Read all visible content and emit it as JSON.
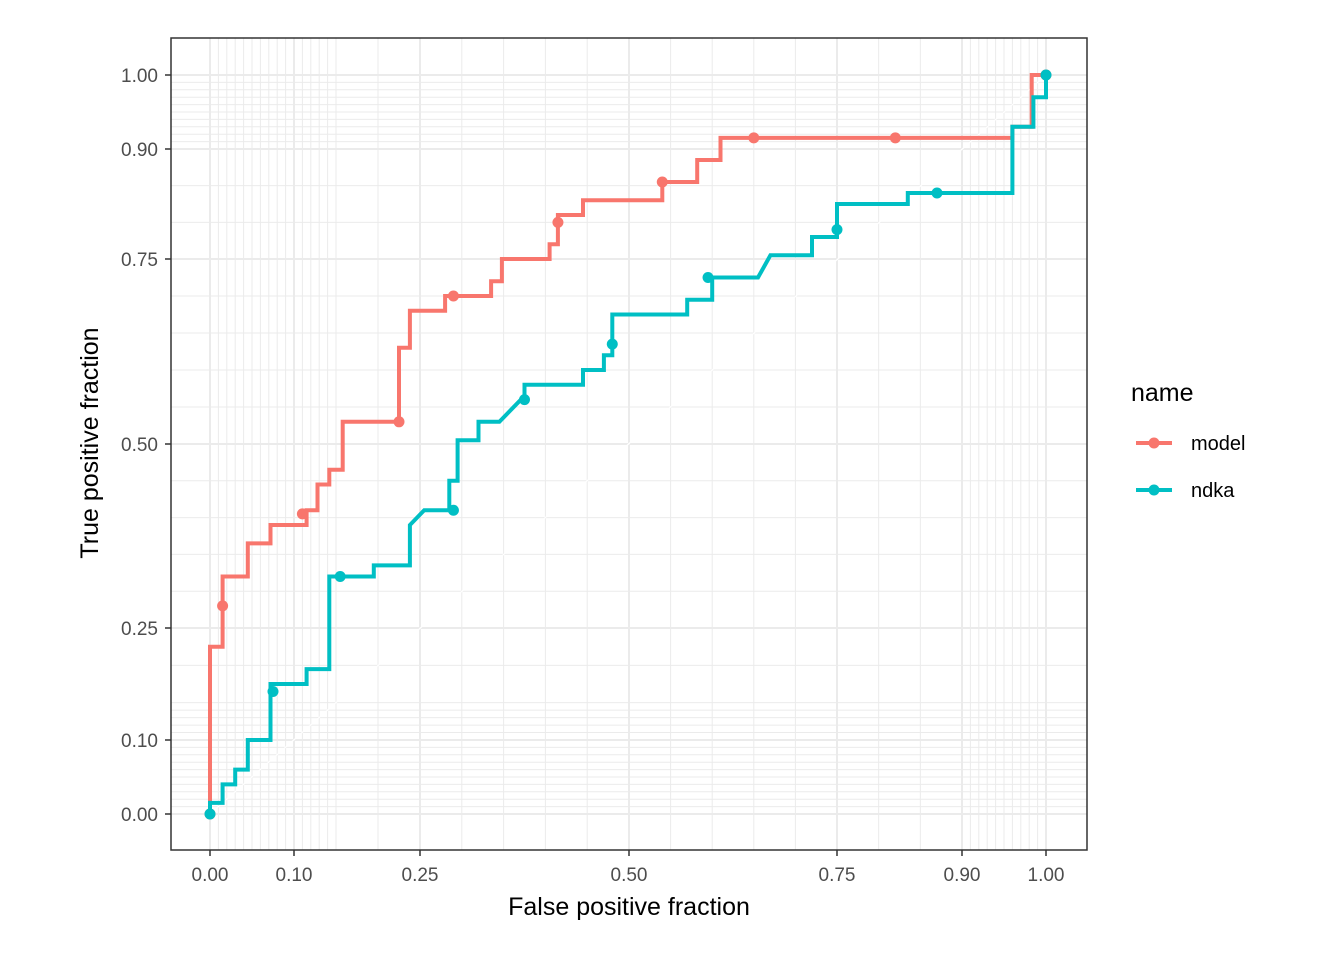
{
  "chart_data": {
    "type": "line",
    "xlabel": "False positive fraction",
    "ylabel": "True positive fraction",
    "xlim": [
      -0.045,
      1.045
    ],
    "ylim": [
      -0.045,
      1.05
    ],
    "scale": "sqrt-like (R plotROC style_roc breaks)",
    "x_ticks": [
      {
        "value": 0.0,
        "label": "0.00"
      },
      {
        "value": 0.1,
        "label": "0.10"
      },
      {
        "value": 0.25,
        "label": "0.25"
      },
      {
        "value": 0.5,
        "label": "0.50"
      },
      {
        "value": 0.75,
        "label": "0.75"
      },
      {
        "value": 0.9,
        "label": "0.90"
      },
      {
        "value": 1.0,
        "label": "1.00"
      }
    ],
    "y_ticks": [
      {
        "value": 0.0,
        "label": "0.00"
      },
      {
        "value": 0.1,
        "label": "0.10"
      },
      {
        "value": 0.25,
        "label": "0.25"
      },
      {
        "value": 0.5,
        "label": "0.50"
      },
      {
        "value": 0.75,
        "label": "0.75"
      },
      {
        "value": 0.9,
        "label": "0.90"
      },
      {
        "value": 1.0,
        "label": "1.00"
      }
    ],
    "minor_grid": [
      0.01,
      0.02,
      0.03,
      0.04,
      0.05,
      0.06,
      0.07,
      0.08,
      0.09,
      0.11,
      0.12,
      0.13,
      0.14,
      0.15,
      0.2,
      0.3,
      0.35,
      0.4,
      0.45,
      0.55,
      0.6,
      0.65,
      0.7,
      0.8,
      0.85,
      0.91,
      0.92,
      0.93,
      0.94,
      0.95,
      0.96,
      0.97,
      0.98,
      0.99
    ],
    "grid": true,
    "legend": {
      "title": "name",
      "position": "right"
    },
    "series": [
      {
        "name": "model",
        "color": "#F8766D",
        "path": [
          [
            0.0,
            0.0
          ],
          [
            0.0,
            0.225
          ],
          [
            0.015,
            0.225
          ],
          [
            0.015,
            0.32
          ],
          [
            0.045,
            0.32
          ],
          [
            0.045,
            0.365
          ],
          [
            0.072,
            0.365
          ],
          [
            0.072,
            0.39
          ],
          [
            0.115,
            0.39
          ],
          [
            0.115,
            0.41
          ],
          [
            0.128,
            0.41
          ],
          [
            0.128,
            0.445
          ],
          [
            0.142,
            0.445
          ],
          [
            0.142,
            0.465
          ],
          [
            0.158,
            0.465
          ],
          [
            0.158,
            0.53
          ],
          [
            0.225,
            0.53
          ],
          [
            0.225,
            0.63
          ],
          [
            0.238,
            0.63
          ],
          [
            0.238,
            0.68
          ],
          [
            0.28,
            0.68
          ],
          [
            0.28,
            0.7
          ],
          [
            0.335,
            0.7
          ],
          [
            0.335,
            0.72
          ],
          [
            0.348,
            0.72
          ],
          [
            0.348,
            0.75
          ],
          [
            0.405,
            0.75
          ],
          [
            0.405,
            0.77
          ],
          [
            0.415,
            0.77
          ],
          [
            0.415,
            0.81
          ],
          [
            0.445,
            0.81
          ],
          [
            0.445,
            0.83
          ],
          [
            0.54,
            0.83
          ],
          [
            0.54,
            0.855
          ],
          [
            0.582,
            0.855
          ],
          [
            0.582,
            0.885
          ],
          [
            0.61,
            0.885
          ],
          [
            0.61,
            0.915
          ],
          [
            0.96,
            0.915
          ],
          [
            0.96,
            0.93
          ],
          [
            0.983,
            0.93
          ],
          [
            0.983,
            1.0
          ],
          [
            1.0,
            1.0
          ]
        ],
        "points": [
          [
            0.0,
            0.0
          ],
          [
            0.015,
            0.28
          ],
          [
            0.11,
            0.405
          ],
          [
            0.225,
            0.53
          ],
          [
            0.29,
            0.7
          ],
          [
            0.415,
            0.8
          ],
          [
            0.54,
            0.855
          ],
          [
            0.65,
            0.915
          ],
          [
            0.82,
            0.915
          ],
          [
            1.0,
            1.0
          ]
        ]
      },
      {
        "name": "ndka",
        "color": "#00BFC4",
        "path": [
          [
            0.0,
            0.0
          ],
          [
            0.0,
            0.015
          ],
          [
            0.015,
            0.015
          ],
          [
            0.015,
            0.04
          ],
          [
            0.03,
            0.04
          ],
          [
            0.03,
            0.06
          ],
          [
            0.045,
            0.06
          ],
          [
            0.045,
            0.1
          ],
          [
            0.072,
            0.1
          ],
          [
            0.072,
            0.175
          ],
          [
            0.115,
            0.175
          ],
          [
            0.115,
            0.195
          ],
          [
            0.142,
            0.195
          ],
          [
            0.142,
            0.32
          ],
          [
            0.195,
            0.32
          ],
          [
            0.195,
            0.335
          ],
          [
            0.238,
            0.335
          ],
          [
            0.238,
            0.39
          ],
          [
            0.255,
            0.41
          ],
          [
            0.285,
            0.41
          ],
          [
            0.285,
            0.45
          ],
          [
            0.295,
            0.45
          ],
          [
            0.295,
            0.505
          ],
          [
            0.32,
            0.505
          ],
          [
            0.32,
            0.53
          ],
          [
            0.345,
            0.53
          ],
          [
            0.375,
            0.565
          ],
          [
            0.375,
            0.58
          ],
          [
            0.445,
            0.58
          ],
          [
            0.445,
            0.6
          ],
          [
            0.47,
            0.6
          ],
          [
            0.47,
            0.62
          ],
          [
            0.48,
            0.62
          ],
          [
            0.48,
            0.675
          ],
          [
            0.57,
            0.675
          ],
          [
            0.57,
            0.695
          ],
          [
            0.6,
            0.695
          ],
          [
            0.6,
            0.725
          ],
          [
            0.655,
            0.725
          ],
          [
            0.67,
            0.755
          ],
          [
            0.72,
            0.755
          ],
          [
            0.72,
            0.78
          ],
          [
            0.75,
            0.78
          ],
          [
            0.75,
            0.825
          ],
          [
            0.835,
            0.825
          ],
          [
            0.835,
            0.84
          ],
          [
            0.92,
            0.84
          ],
          [
            0.96,
            0.84
          ],
          [
            0.96,
            0.93
          ],
          [
            0.985,
            0.93
          ],
          [
            0.985,
            0.97
          ],
          [
            1.0,
            0.97
          ],
          [
            1.0,
            1.0
          ]
        ],
        "points": [
          [
            0.0,
            0.0
          ],
          [
            0.075,
            0.165
          ],
          [
            0.155,
            0.32
          ],
          [
            0.29,
            0.41
          ],
          [
            0.375,
            0.56
          ],
          [
            0.48,
            0.635
          ],
          [
            0.595,
            0.725
          ],
          [
            0.75,
            0.79
          ],
          [
            0.87,
            0.84
          ],
          [
            1.0,
            1.0
          ]
        ]
      }
    ]
  }
}
